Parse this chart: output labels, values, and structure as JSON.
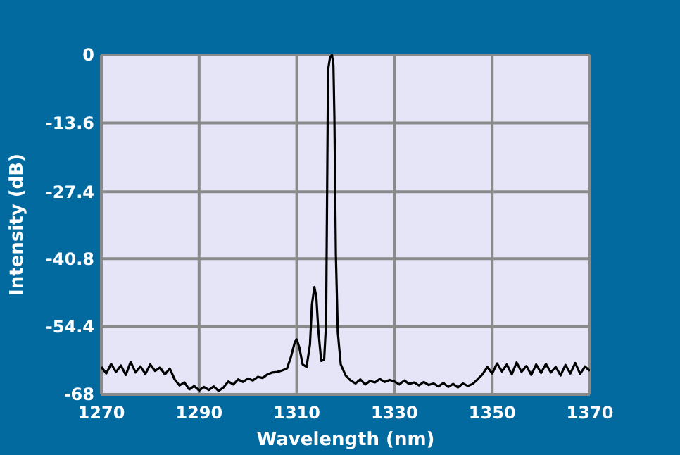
{
  "chart_data": {
    "type": "line",
    "xlabel": "Wavelength (nm)",
    "ylabel": "Intensity (dB)",
    "xlim": [
      1270,
      1370
    ],
    "xticks": [
      1270,
      1290,
      1310,
      1330,
      1350,
      1370
    ],
    "ylim": [
      -68,
      0
    ],
    "yticks": [
      -68,
      -54.4,
      -40.8,
      -27.4,
      -13.6,
      0
    ],
    "grid": true,
    "marker": "none",
    "line_style": "solid",
    "series": [
      {
        "color": "#000000",
        "x": [
          1270,
          1271,
          1272,
          1273,
          1274,
          1275,
          1276,
          1277,
          1278,
          1279,
          1280,
          1281,
          1282,
          1283,
          1284,
          1285,
          1286,
          1287,
          1288,
          1289,
          1290,
          1291,
          1292,
          1293,
          1294,
          1295,
          1296,
          1297,
          1298,
          1299,
          1300,
          1301,
          1302,
          1303,
          1304,
          1305,
          1306,
          1307,
          1308,
          1308.8,
          1309.6,
          1310,
          1310.5,
          1311.2,
          1312,
          1312.7,
          1313.1,
          1313.6,
          1314,
          1314.4,
          1315,
          1315.6,
          1316,
          1316.4,
          1316.8,
          1317.2,
          1317.5,
          1317.7,
          1318,
          1318.4,
          1319,
          1320,
          1321,
          1322,
          1323,
          1324,
          1325,
          1326,
          1327,
          1328,
          1329,
          1330,
          1331,
          1332,
          1333,
          1334,
          1335,
          1336,
          1337,
          1338,
          1339,
          1340,
          1341,
          1342,
          1343,
          1344,
          1345,
          1346,
          1347,
          1348,
          1349,
          1350,
          1351,
          1352,
          1353,
          1354,
          1355,
          1356,
          1357,
          1358,
          1359,
          1360,
          1361,
          1362,
          1363,
          1364,
          1365,
          1366,
          1367,
          1368,
          1369,
          1370
        ],
        "values": [
          -62.5,
          -63.8,
          -61.9,
          -63.5,
          -62.2,
          -64.1,
          -61.5,
          -63.6,
          -62.4,
          -63.9,
          -62.0,
          -63.3,
          -62.6,
          -64.0,
          -62.8,
          -65.0,
          -66.2,
          -65.6,
          -67.0,
          -66.3,
          -67.2,
          -66.5,
          -67.1,
          -66.4,
          -67.3,
          -66.6,
          -65.4,
          -66.0,
          -65.0,
          -65.5,
          -64.8,
          -65.2,
          -64.5,
          -64.7,
          -64.0,
          -63.6,
          -63.5,
          -63.2,
          -62.8,
          -60.5,
          -57.5,
          -57.0,
          -58.5,
          -62.0,
          -62.5,
          -58,
          -50,
          -46.5,
          -48.4,
          -55,
          -61.3,
          -61,
          -53.7,
          -3,
          -0.5,
          0,
          -2,
          -12.6,
          -40,
          -55.6,
          -62,
          -64.2,
          -65.2,
          -65.8,
          -65.0,
          -66.0,
          -65.3,
          -65.6,
          -64.9,
          -65.5,
          -65.1,
          -65.4,
          -66.0,
          -65.2,
          -65.9,
          -65.6,
          -66.2,
          -65.5,
          -66.1,
          -65.8,
          -66.4,
          -65.7,
          -66.5,
          -65.9,
          -66.6,
          -65.8,
          -66.3,
          -65.9,
          -65.0,
          -64.0,
          -62.5,
          -63.8,
          -61.8,
          -63.4,
          -62.0,
          -64.0,
          -61.6,
          -63.5,
          -62.3,
          -64.1,
          -62.0,
          -63.7,
          -61.9,
          -63.6,
          -62.5,
          -64.2,
          -62.1,
          -63.8,
          -61.7,
          -63.9,
          -62.4,
          -63.3
        ]
      }
    ]
  }
}
